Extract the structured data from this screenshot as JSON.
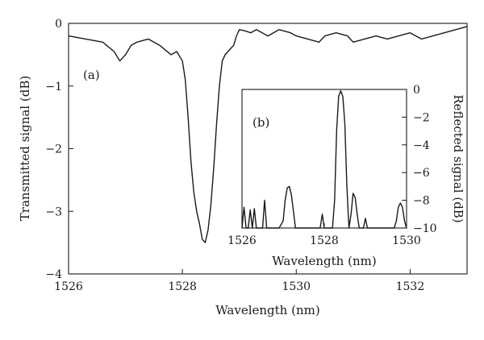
{
  "chart_data": [
    {
      "id": "main",
      "type": "line",
      "panel_label": "(a)",
      "xlabel": "Wavelength (nm)",
      "ylabel": "Transmitted signal (dB)",
      "xlim": [
        1526,
        1533
      ],
      "ylim": [
        -4,
        0
      ],
      "x_ticks": [
        1526,
        1528,
        1530,
        1532
      ],
      "y_ticks": [
        0,
        -1,
        -2,
        -3,
        -4
      ],
      "x_tick_labels": [
        "1526",
        "1528",
        "1530",
        "1532"
      ],
      "y_tick_labels": [
        "0",
        "−1",
        "−2",
        "−3",
        "−4"
      ],
      "grid": false,
      "series": [
        {
          "x": [
            1526.0,
            1526.3,
            1526.6,
            1526.8,
            1526.9,
            1527.0,
            1527.1,
            1527.2,
            1527.4,
            1527.6,
            1527.8,
            1527.9,
            1528.0,
            1528.05,
            1528.1,
            1528.15,
            1528.2,
            1528.25,
            1528.3,
            1528.35,
            1528.4,
            1528.45,
            1528.5,
            1528.55,
            1528.6,
            1528.65,
            1528.7,
            1528.75,
            1528.8,
            1528.85,
            1528.9,
            1528.95,
            1529.0,
            1529.1,
            1529.2,
            1529.3,
            1529.5,
            1529.7,
            1529.9,
            1530.0,
            1530.2,
            1530.4,
            1530.5,
            1530.7,
            1530.9,
            1531.0,
            1531.2,
            1531.4,
            1531.6,
            1531.8,
            1532.0,
            1532.2,
            1532.4,
            1532.6,
            1532.8,
            1533.0
          ],
          "y": [
            -0.2,
            -0.25,
            -0.3,
            -0.45,
            -0.6,
            -0.5,
            -0.35,
            -0.3,
            -0.25,
            -0.35,
            -0.5,
            -0.45,
            -0.6,
            -0.9,
            -1.5,
            -2.2,
            -2.7,
            -3.0,
            -3.2,
            -3.45,
            -3.5,
            -3.3,
            -2.9,
            -2.3,
            -1.6,
            -1.0,
            -0.6,
            -0.5,
            -0.45,
            -0.4,
            -0.35,
            -0.2,
            -0.1,
            -0.12,
            -0.15,
            -0.1,
            -0.2,
            -0.1,
            -0.15,
            -0.2,
            -0.25,
            -0.3,
            -0.2,
            -0.15,
            -0.2,
            -0.3,
            -0.25,
            -0.2,
            -0.25,
            -0.2,
            -0.15,
            -0.25,
            -0.2,
            -0.15,
            -0.1,
            -0.05
          ]
        }
      ]
    },
    {
      "id": "inset",
      "type": "line",
      "panel_label": "(b)",
      "xlabel": "Wavelength (nm)",
      "ylabel": "Reflected signal (dB)",
      "xlim": [
        1526,
        1530
      ],
      "ylim": [
        -10,
        0
      ],
      "x_ticks": [
        1526,
        1528,
        1530
      ],
      "y_ticks": [
        0,
        -2,
        -4,
        -6,
        -8,
        -10
      ],
      "x_tick_labels": [
        "1526",
        "1528",
        "1530"
      ],
      "y_tick_labels": [
        "0",
        "−2",
        "−4",
        "−6",
        "−8",
        "−10"
      ],
      "grid": false,
      "series": [
        {
          "x": [
            1526.0,
            1526.05,
            1526.1,
            1526.15,
            1526.2,
            1526.25,
            1526.3,
            1526.35,
            1526.4,
            1526.45,
            1526.5,
            1526.55,
            1526.6,
            1526.65,
            1526.7,
            1526.8,
            1526.9,
            1527.0,
            1527.05,
            1527.1,
            1527.15,
            1527.2,
            1527.25,
            1527.3,
            1527.35,
            1527.4,
            1527.5,
            1527.6,
            1527.7,
            1527.8,
            1527.9,
            1527.95,
            1528.0,
            1528.05,
            1528.1,
            1528.2,
            1528.25,
            1528.3,
            1528.35,
            1528.4,
            1528.45,
            1528.5,
            1528.55,
            1528.6,
            1528.65,
            1528.7,
            1528.75,
            1528.8,
            1528.85,
            1528.9,
            1528.95,
            1529.0,
            1529.05,
            1529.1,
            1529.2,
            1529.3,
            1529.4,
            1529.5,
            1529.6,
            1529.7,
            1529.75,
            1529.8,
            1529.85,
            1529.9,
            1529.95,
            1530.0
          ],
          "y": [
            -10,
            -8.5,
            -10,
            -10,
            -8.7,
            -10,
            -8.6,
            -10,
            -10,
            -10,
            -10,
            -8.0,
            -10,
            -10,
            -10,
            -10,
            -10,
            -9.5,
            -8.0,
            -7.1,
            -7.0,
            -7.6,
            -8.8,
            -10,
            -10,
            -10,
            -10,
            -10,
            -10,
            -10,
            -10,
            -9.0,
            -10,
            -10,
            -10,
            -10,
            -8.0,
            -3.0,
            -0.5,
            -0.1,
            -0.5,
            -2.5,
            -7.0,
            -10,
            -9.0,
            -7.5,
            -7.8,
            -9.0,
            -10,
            -10,
            -10,
            -9.3,
            -10,
            -10,
            -10,
            -10,
            -10,
            -10,
            -10,
            -10,
            -9.5,
            -8.5,
            -8.2,
            -8.5,
            -9.5,
            -10
          ]
        }
      ]
    }
  ]
}
